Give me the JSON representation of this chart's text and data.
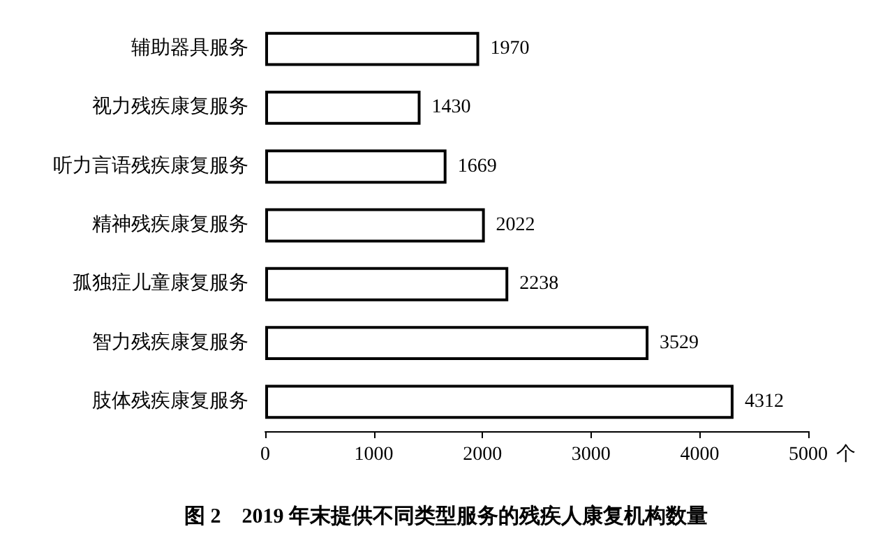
{
  "chart_data": {
    "type": "bar",
    "orientation": "horizontal",
    "title": "图 2　2019 年末提供不同类型服务的残疾人康复机构数量",
    "xlabel": "个",
    "categories": [
      "辅助器具服务",
      "视力残疾康复服务",
      "听力言语残疾康复服务",
      "精神残疾康复服务",
      "孤独症儿童康复服务",
      "智力残疾康复服务",
      "肢体残疾康复服务"
    ],
    "values": [
      1970,
      1430,
      1669,
      2022,
      2238,
      3529,
      4312
    ],
    "color": "#ffffff",
    "xlim": [
      0,
      5000
    ],
    "xticks": [
      0,
      1000,
      2000,
      3000,
      4000,
      5000
    ],
    "data_labels": true
  }
}
